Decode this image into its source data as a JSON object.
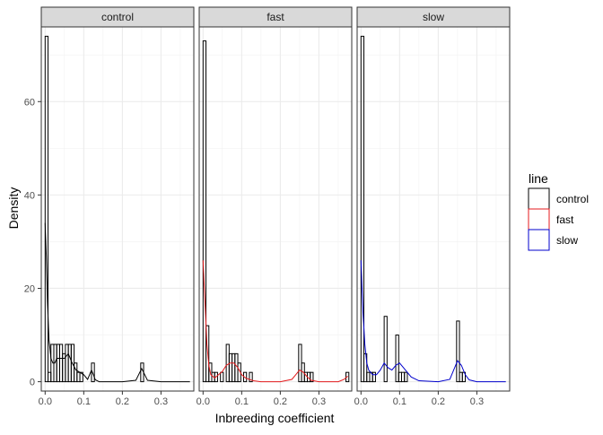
{
  "chart_data": {
    "type": "histogram-density-facets",
    "xlabel": "Inbreeding coefficient",
    "ylabel": "Density",
    "xlim": [
      -0.01,
      0.385
    ],
    "ylim": [
      -2,
      76
    ],
    "x_ticks": [
      0.0,
      0.1,
      0.2,
      0.3
    ],
    "x_tick_labels": [
      "0.0",
      "0.1",
      "0.2",
      "0.3"
    ],
    "y_ticks": [
      0,
      20,
      40,
      60
    ],
    "y_tick_labels": [
      "0",
      "20",
      "40",
      "60"
    ],
    "bin_width": 0.0075,
    "grid": true,
    "legend": {
      "title": "line",
      "position": "right",
      "entries": [
        {
          "label": "control",
          "color": "#000000"
        },
        {
          "label": "fast",
          "color": "#e41a1c"
        },
        {
          "label": "slow",
          "color": "#0000cc"
        }
      ]
    },
    "facets": [
      {
        "label": "control",
        "color": "#000000",
        "bars": [
          {
            "x": 0.0,
            "h": 74
          },
          {
            "x": 0.0075,
            "h": 2
          },
          {
            "x": 0.015,
            "h": 8
          },
          {
            "x": 0.0225,
            "h": 8
          },
          {
            "x": 0.03,
            "h": 8
          },
          {
            "x": 0.0375,
            "h": 8
          },
          {
            "x": 0.045,
            "h": 6
          },
          {
            "x": 0.0525,
            "h": 8
          },
          {
            "x": 0.06,
            "h": 8
          },
          {
            "x": 0.0675,
            "h": 8
          },
          {
            "x": 0.075,
            "h": 4
          },
          {
            "x": 0.0825,
            "h": 2
          },
          {
            "x": 0.09,
            "h": 2
          },
          {
            "x": 0.12,
            "h": 4
          },
          {
            "x": 0.2475,
            "h": 4
          }
        ],
        "density": {
          "x": [
            0.0,
            0.003,
            0.006,
            0.01,
            0.015,
            0.02,
            0.025,
            0.03,
            0.04,
            0.05,
            0.06,
            0.07,
            0.08,
            0.09,
            0.1,
            0.11,
            0.115,
            0.12,
            0.125,
            0.13,
            0.14,
            0.15,
            0.2,
            0.235,
            0.245,
            0.25,
            0.255,
            0.265,
            0.3,
            0.375
          ],
          "y": [
            34,
            27,
            17,
            9,
            5,
            4,
            4,
            5,
            5,
            5,
            6,
            4,
            2.5,
            2,
            1.5,
            0.5,
            1.5,
            2.5,
            1.5,
            0.4,
            0,
            0,
            0,
            0.3,
            2,
            2.8,
            2,
            0.3,
            0,
            0
          ]
        }
      },
      {
        "label": "fast",
        "color": "#e41a1c",
        "bars": [
          {
            "x": 0.0,
            "h": 73
          },
          {
            "x": 0.0075,
            "h": 12
          },
          {
            "x": 0.015,
            "h": 4
          },
          {
            "x": 0.0225,
            "h": 2
          },
          {
            "x": 0.03,
            "h": 2
          },
          {
            "x": 0.045,
            "h": 2
          },
          {
            "x": 0.06,
            "h": 8
          },
          {
            "x": 0.0675,
            "h": 6
          },
          {
            "x": 0.075,
            "h": 6
          },
          {
            "x": 0.0825,
            "h": 6
          },
          {
            "x": 0.09,
            "h": 4
          },
          {
            "x": 0.105,
            "h": 2
          },
          {
            "x": 0.12,
            "h": 2
          },
          {
            "x": 0.2475,
            "h": 8
          },
          {
            "x": 0.255,
            "h": 4
          },
          {
            "x": 0.2625,
            "h": 2
          },
          {
            "x": 0.27,
            "h": 2
          },
          {
            "x": 0.2775,
            "h": 2
          },
          {
            "x": 0.37,
            "h": 2
          }
        ],
        "density": {
          "x": [
            0.0,
            0.005,
            0.01,
            0.015,
            0.02,
            0.03,
            0.04,
            0.05,
            0.06,
            0.07,
            0.08,
            0.09,
            0.1,
            0.11,
            0.12,
            0.13,
            0.15,
            0.2,
            0.23,
            0.24,
            0.25,
            0.26,
            0.27,
            0.28,
            0.3,
            0.35,
            0.365,
            0.375
          ],
          "y": [
            26,
            17,
            8,
            3.5,
            1.5,
            0.8,
            1.5,
            2.2,
            3.5,
            4,
            4,
            3,
            1.5,
            0.8,
            0.5,
            0.2,
            0,
            0,
            0.5,
            1.5,
            2.5,
            2,
            1,
            0.3,
            0,
            0,
            0.5,
            1.2
          ]
        }
      },
      {
        "label": "slow",
        "color": "#0000cc",
        "bars": [
          {
            "x": 0.0,
            "h": 74
          },
          {
            "x": 0.0075,
            "h": 6
          },
          {
            "x": 0.015,
            "h": 2
          },
          {
            "x": 0.0225,
            "h": 2
          },
          {
            "x": 0.03,
            "h": 2
          },
          {
            "x": 0.06,
            "h": 14
          },
          {
            "x": 0.09,
            "h": 10
          },
          {
            "x": 0.0975,
            "h": 2
          },
          {
            "x": 0.105,
            "h": 2
          },
          {
            "x": 0.1125,
            "h": 2
          },
          {
            "x": 0.2475,
            "h": 13
          },
          {
            "x": 0.255,
            "h": 2
          },
          {
            "x": 0.2625,
            "h": 2
          }
        ],
        "density": {
          "x": [
            0.0,
            0.005,
            0.01,
            0.015,
            0.02,
            0.03,
            0.04,
            0.05,
            0.06,
            0.07,
            0.08,
            0.09,
            0.1,
            0.11,
            0.12,
            0.13,
            0.15,
            0.2,
            0.23,
            0.24,
            0.25,
            0.26,
            0.27,
            0.28,
            0.3,
            0.375
          ],
          "y": [
            26,
            15,
            8,
            4,
            2.5,
            1.5,
            1.5,
            2.5,
            4,
            3,
            2.5,
            3.5,
            4,
            3,
            2,
            1,
            0.2,
            0,
            0.5,
            2.5,
            4.5,
            3.5,
            1.5,
            0.4,
            0,
            0
          ]
        }
      }
    ]
  }
}
